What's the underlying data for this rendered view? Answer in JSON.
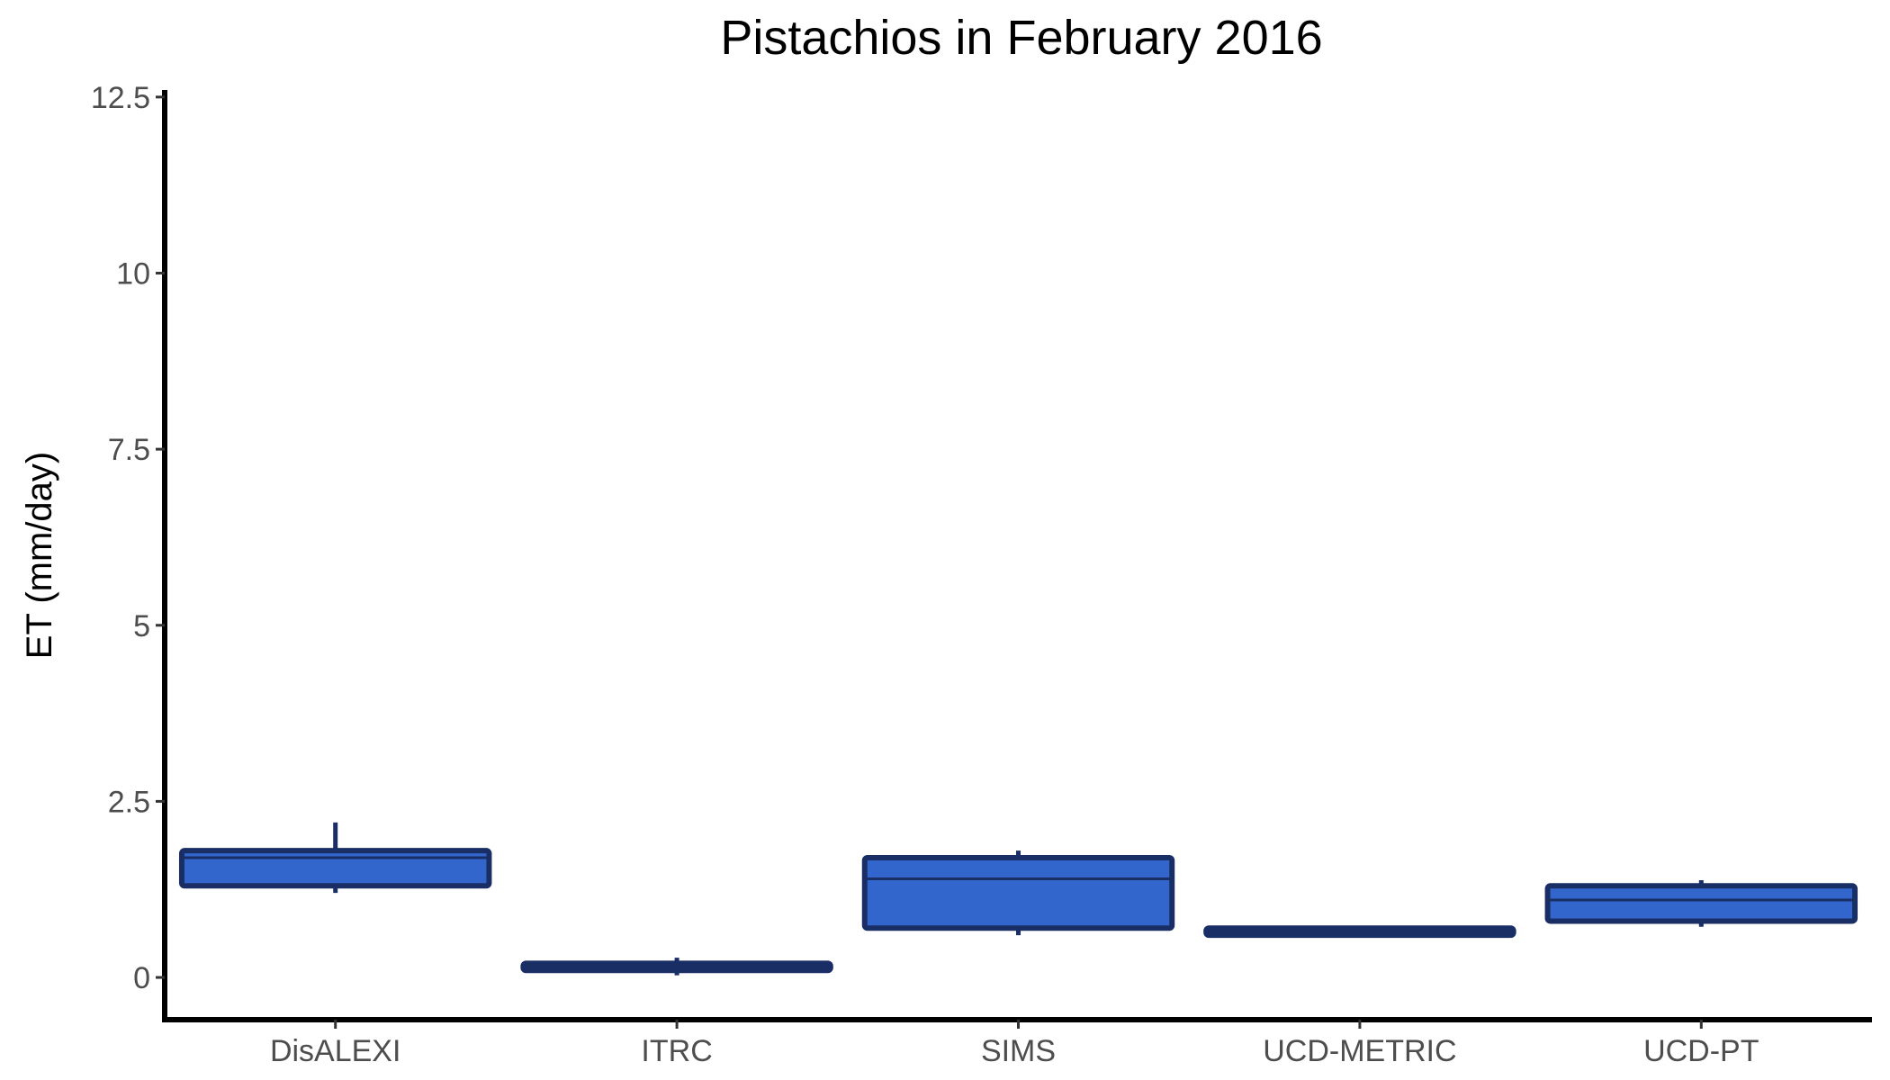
{
  "chart_data": {
    "type": "boxplot",
    "title": "Pistachios in February 2016",
    "xlabel": "",
    "ylabel": "ET (mm/day)",
    "ylim": [
      -0.6,
      12.6
    ],
    "yticks": [
      0,
      2.5,
      5,
      7.5,
      10,
      12.5
    ],
    "ytick_labels": [
      "0",
      "2.5",
      "5",
      "7.5",
      "10",
      "12.5"
    ],
    "grid": false,
    "legend": "none",
    "box_fill_color": "#3366cc",
    "box_edge_color": "#1a2e66",
    "axis_color": "#000000",
    "categories": [
      "DisALEXI",
      "ITRC",
      "SIMS",
      "UCD-METRIC",
      "UCD-PT"
    ],
    "boxes": [
      {
        "category": "DisALEXI",
        "whisker_low": 1.2,
        "q1": 1.3,
        "median": 1.7,
        "q3": 1.8,
        "whisker_high": 2.2
      },
      {
        "category": "ITRC",
        "whisker_low": 0.03,
        "q1": 0.1,
        "median": 0.15,
        "q3": 0.2,
        "whisker_high": 0.28
      },
      {
        "category": "SIMS",
        "whisker_low": 0.6,
        "q1": 0.7,
        "median": 1.4,
        "q3": 1.7,
        "whisker_high": 1.8
      },
      {
        "category": "UCD-METRIC",
        "whisker_low": 0.6,
        "q1": 0.6,
        "median": 0.65,
        "q3": 0.7,
        "whisker_high": 0.7
      },
      {
        "category": "UCD-PT",
        "whisker_low": 0.72,
        "q1": 0.8,
        "median": 1.1,
        "q3": 1.3,
        "whisker_high": 1.38
      }
    ]
  }
}
